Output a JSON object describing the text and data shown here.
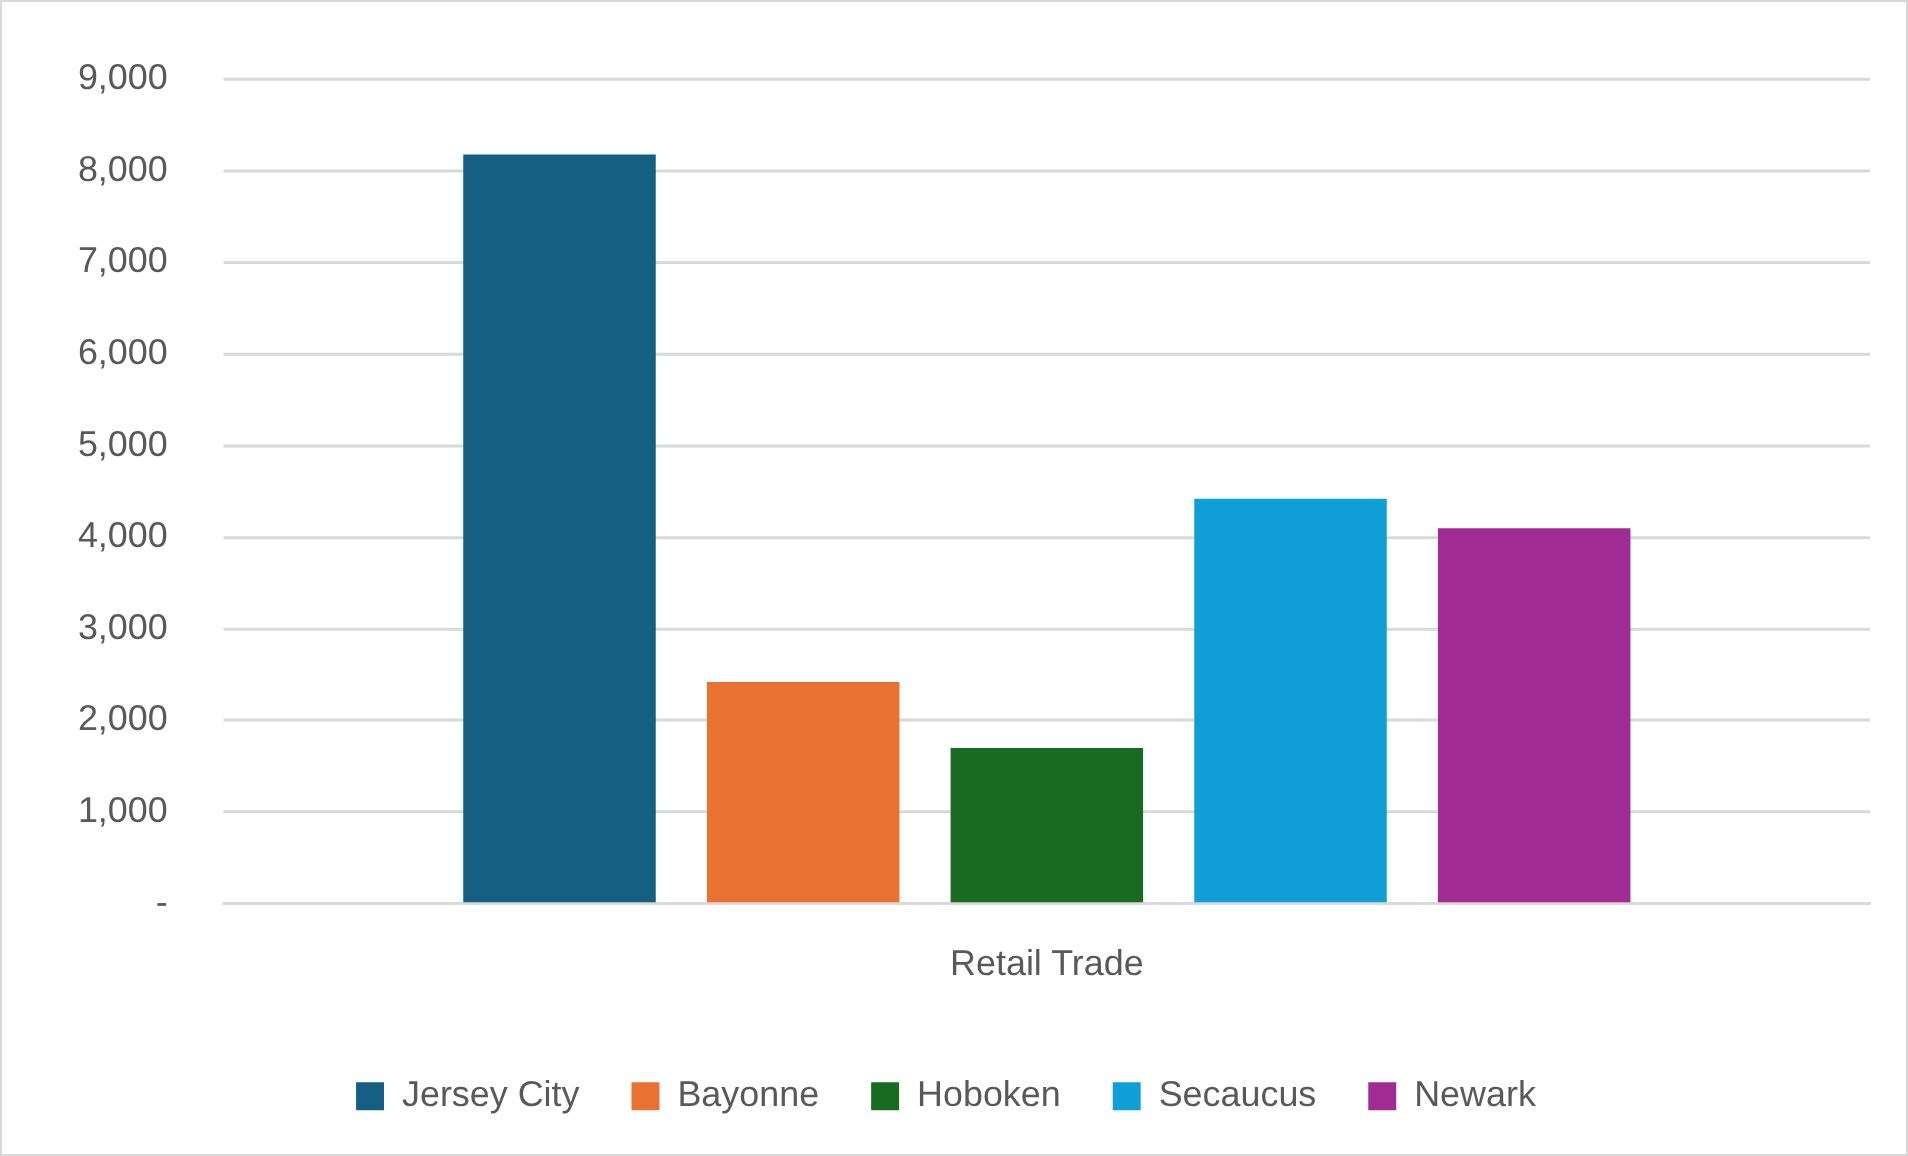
{
  "chart_data": {
    "type": "bar",
    "categories": [
      "Retail Trade"
    ],
    "series": [
      {
        "name": "Jersey City",
        "color": "#156082",
        "values": [
          8180
        ]
      },
      {
        "name": "Bayonne",
        "color": "#e97132",
        "values": [
          2420
        ]
      },
      {
        "name": "Hoboken",
        "color": "#196b24",
        "values": [
          1700
        ]
      },
      {
        "name": "Secaucus",
        "color": "#0f9ed5",
        "values": [
          4420
        ]
      },
      {
        "name": "Newark",
        "color": "#a02b93",
        "values": [
          4100
        ]
      }
    ],
    "ylim": [
      0,
      9000
    ],
    "yticks": [
      {
        "value": 0,
        "label": "-"
      },
      {
        "value": 1000,
        "label": "1,000"
      },
      {
        "value": 2000,
        "label": "2,000"
      },
      {
        "value": 3000,
        "label": "3,000"
      },
      {
        "value": 4000,
        "label": "4,000"
      },
      {
        "value": 5000,
        "label": "5,000"
      },
      {
        "value": 6000,
        "label": "6,000"
      },
      {
        "value": 7000,
        "label": "7,000"
      },
      {
        "value": 8000,
        "label": "8,000"
      },
      {
        "value": 9000,
        "label": "9,000"
      }
    ],
    "grid": "y",
    "legend": "bottom"
  }
}
